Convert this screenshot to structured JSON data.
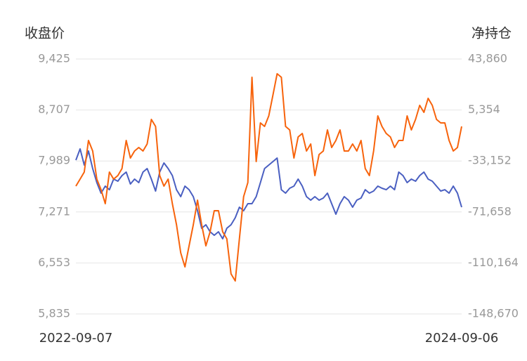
{
  "chart_data": {
    "type": "line",
    "ylabel": "收盘价",
    "y2label": "净持仓",
    "categories": [
      "2022-09-07",
      null,
      null,
      null,
      null,
      null,
      null,
      null,
      null,
      null,
      null,
      null,
      null,
      null,
      null,
      null,
      null,
      null,
      null,
      null,
      null,
      null,
      null,
      null,
      null,
      null,
      null,
      null,
      null,
      null,
      null,
      null,
      null,
      null,
      null,
      null,
      null,
      null,
      null,
      null,
      null,
      null,
      null,
      null,
      null,
      null,
      null,
      null,
      null,
      null,
      null,
      null,
      null,
      null,
      null,
      null,
      null,
      null,
      null,
      null,
      null,
      null,
      null,
      null,
      null,
      null,
      null,
      null,
      null,
      null,
      null,
      null,
      null,
      null,
      null,
      null,
      null,
      null,
      null,
      null,
      null,
      null,
      null,
      null,
      null,
      null,
      null,
      null,
      null,
      null,
      null,
      null,
      "2024-09-06"
    ],
    "ylim": [
      5835,
      9425
    ],
    "yticks": [
      {
        "value": 5835,
        "label": "5,835"
      },
      {
        "value": 6553,
        "label": "6,553"
      },
      {
        "value": 7271,
        "label": "7,271"
      },
      {
        "value": 7989,
        "label": "7,989"
      },
      {
        "value": 8707,
        "label": "8,707"
      },
      {
        "value": 9425,
        "label": "9,425"
      }
    ],
    "y2lim": [
      -148670,
      43860
    ],
    "y2ticks": [
      {
        "value": -148670,
        "label": "-148,670"
      },
      {
        "value": -110164,
        "label": "-110,164"
      },
      {
        "value": -71658,
        "label": "-71,658"
      },
      {
        "value": -33152,
        "label": "-33,152"
      },
      {
        "value": 5354,
        "label": "5,354"
      },
      {
        "value": 43860,
        "label": "43,860"
      }
    ],
    "grid": true,
    "series": [
      {
        "color": "#4a5fc1",
        "values": [
          8001,
          8159,
          7932,
          8129,
          7882,
          7684,
          7536,
          7635,
          7585,
          7734,
          7704,
          7783,
          7833,
          7665,
          7734,
          7684,
          7833,
          7882,
          7734,
          7566,
          7833,
          7961,
          7882,
          7783,
          7585,
          7487,
          7635,
          7585,
          7487,
          7289,
          7042,
          7091,
          6992,
          6943,
          6992,
          6893,
          7042,
          7091,
          7190,
          7338,
          7289,
          7388,
          7388,
          7487,
          7684,
          7882,
          7932,
          7981,
          8031,
          7585,
          7536,
          7605,
          7635,
          7734,
          7635,
          7487,
          7437,
          7487,
          7437,
          7467,
          7536,
          7388,
          7239,
          7388,
          7487,
          7437,
          7338,
          7437,
          7467,
          7585,
          7536,
          7566,
          7635,
          7605,
          7585,
          7635,
          7585,
          7833,
          7783,
          7684,
          7734,
          7704,
          7783,
          7833,
          7734,
          7704,
          7635,
          7566,
          7585,
          7536,
          7635,
          7536,
          7338
        ]
      },
      {
        "color": "#f7630c",
        "axis": "y2",
        "values": [
          -52142,
          -46838,
          -41534,
          -17666,
          -25622,
          -46838,
          -54794,
          -65402,
          -41534,
          -46838,
          -44186,
          -38882,
          -17666,
          -30926,
          -25622,
          -22970,
          -25622,
          -20318,
          -1754,
          -7058,
          -44186,
          -52142,
          -46838,
          -65402,
          -81314,
          -102530,
          -113140,
          -97226,
          -81314,
          -62750,
          -81314,
          -97226,
          -86618,
          -70706,
          -70706,
          -86618,
          -91922,
          -118442,
          -123746,
          -91922,
          -60098,
          -49490,
          30070,
          -33578,
          -4406,
          -7058,
          898,
          16810,
          32722,
          30070,
          -7058,
          -9710,
          -30926,
          -15014,
          -12362,
          -25622,
          -20318,
          -44186,
          -28274,
          -25622,
          -9710,
          -22970,
          -17666,
          -9710,
          -25622,
          -25622,
          -20318,
          -25622,
          -17666,
          -38882,
          -44186,
          -25622,
          898,
          -7058,
          -12362,
          -15014,
          -22970,
          -17666,
          -17666,
          898,
          -9710,
          -1754,
          8854,
          3550,
          14158,
          8854,
          -1754,
          -4406,
          -4406,
          -17666,
          -25622,
          -22970,
          -7058
        ]
      }
    ]
  }
}
